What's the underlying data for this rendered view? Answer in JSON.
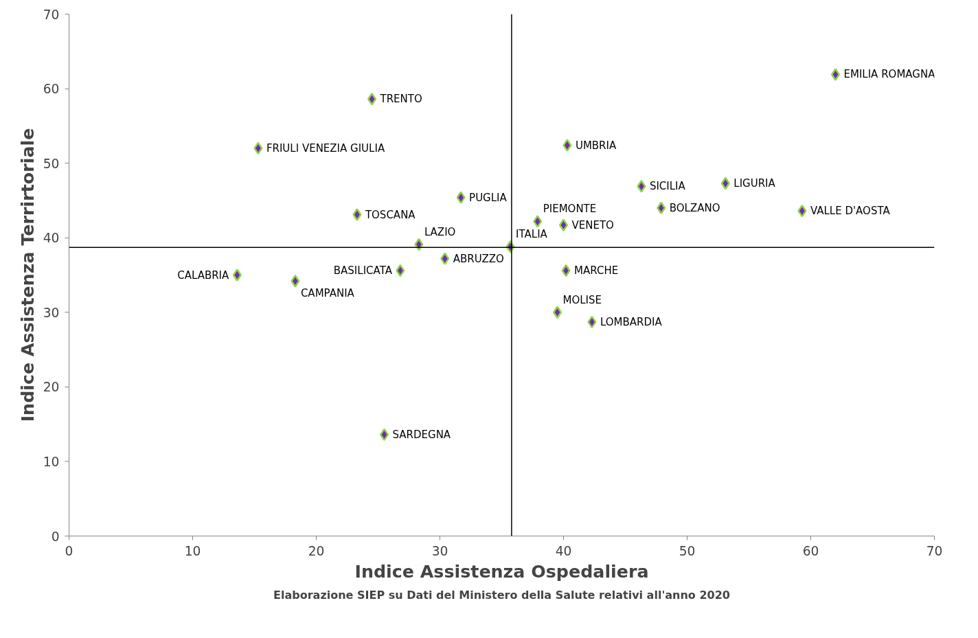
{
  "chart_data": {
    "type": "scatter",
    "xlabel": "Indice Assistenza Ospedaliera",
    "ylabel": "Indice Assistenza Terrirtoriale",
    "xlim": [
      0,
      70
    ],
    "ylim": [
      0,
      70
    ],
    "xticks": [
      0,
      10,
      20,
      30,
      40,
      50,
      60,
      70
    ],
    "yticks": [
      0,
      10,
      20,
      30,
      40,
      50,
      60,
      70
    ],
    "grid": false,
    "marker": "diamond",
    "series": [
      {
        "color": "#7030a0",
        "x": [
          62.0,
          24.5,
          15.3,
          40.3,
          46.3,
          53.1,
          31.7,
          23.3,
          37.9,
          40.0,
          47.9,
          59.3,
          28.3,
          35.7,
          30.4,
          26.8,
          13.6,
          18.3,
          40.2,
          39.5,
          42.3,
          25.5
        ],
        "values": [
          61.9,
          58.6,
          52.0,
          52.4,
          46.9,
          47.3,
          45.4,
          43.1,
          42.2,
          41.7,
          44.0,
          43.6,
          39.1,
          38.8,
          37.2,
          35.6,
          35.0,
          34.2,
          35.6,
          30.0,
          28.7,
          13.6
        ]
      }
    ],
    "ref_lines": [
      {
        "axis": "x",
        "value": 35.8,
        "color": "#000000"
      },
      {
        "axis": "y",
        "value": 38.7,
        "color": "#000000"
      }
    ],
    "annotations": [
      {
        "text": "EMILIA ROMAGNA",
        "x": 62.0,
        "y": 61.9
      },
      {
        "text": "TRENTO",
        "x": 24.5,
        "y": 58.6
      },
      {
        "text": "FRIULI VENEZIA GIULIA",
        "x": 15.3,
        "y": 52.0
      },
      {
        "text": "UMBRIA",
        "x": 40.3,
        "y": 52.4
      },
      {
        "text": "SICILIA",
        "x": 46.3,
        "y": 46.9
      },
      {
        "text": "LIGURIA",
        "x": 53.1,
        "y": 47.3
      },
      {
        "text": "PUGLIA",
        "x": 31.7,
        "y": 45.4
      },
      {
        "text": "TOSCANA",
        "x": 23.3,
        "y": 43.1
      },
      {
        "text": "PIEMONTE",
        "x": 37.9,
        "y": 42.2
      },
      {
        "text": "VENETO",
        "x": 40.0,
        "y": 41.7
      },
      {
        "text": "BOLZANO",
        "x": 47.9,
        "y": 44.0
      },
      {
        "text": "VALLE D'AOSTA",
        "x": 59.3,
        "y": 43.6
      },
      {
        "text": "LAZIO",
        "x": 28.3,
        "y": 39.1
      },
      {
        "text": "ITALIA",
        "x": 35.7,
        "y": 38.8
      },
      {
        "text": "ABRUZZO",
        "x": 30.4,
        "y": 37.2
      },
      {
        "text": "BASILICATA",
        "x": 26.8,
        "y": 35.6
      },
      {
        "text": "CALABRIA",
        "x": 13.6,
        "y": 35.0
      },
      {
        "text": "CAMPANIA",
        "x": 18.3,
        "y": 34.2
      },
      {
        "text": "MARCHE",
        "x": 40.2,
        "y": 35.6
      },
      {
        "text": "MOLISE",
        "x": 39.5,
        "y": 30.0
      },
      {
        "text": "LOMBARDIA",
        "x": 42.3,
        "y": 28.7
      },
      {
        "text": "SARDEGNA",
        "x": 25.5,
        "y": 13.6
      },
      "Elaborazione SIEP su Dati del Ministero della Salute relativi all'anno 2020"
    ]
  }
}
